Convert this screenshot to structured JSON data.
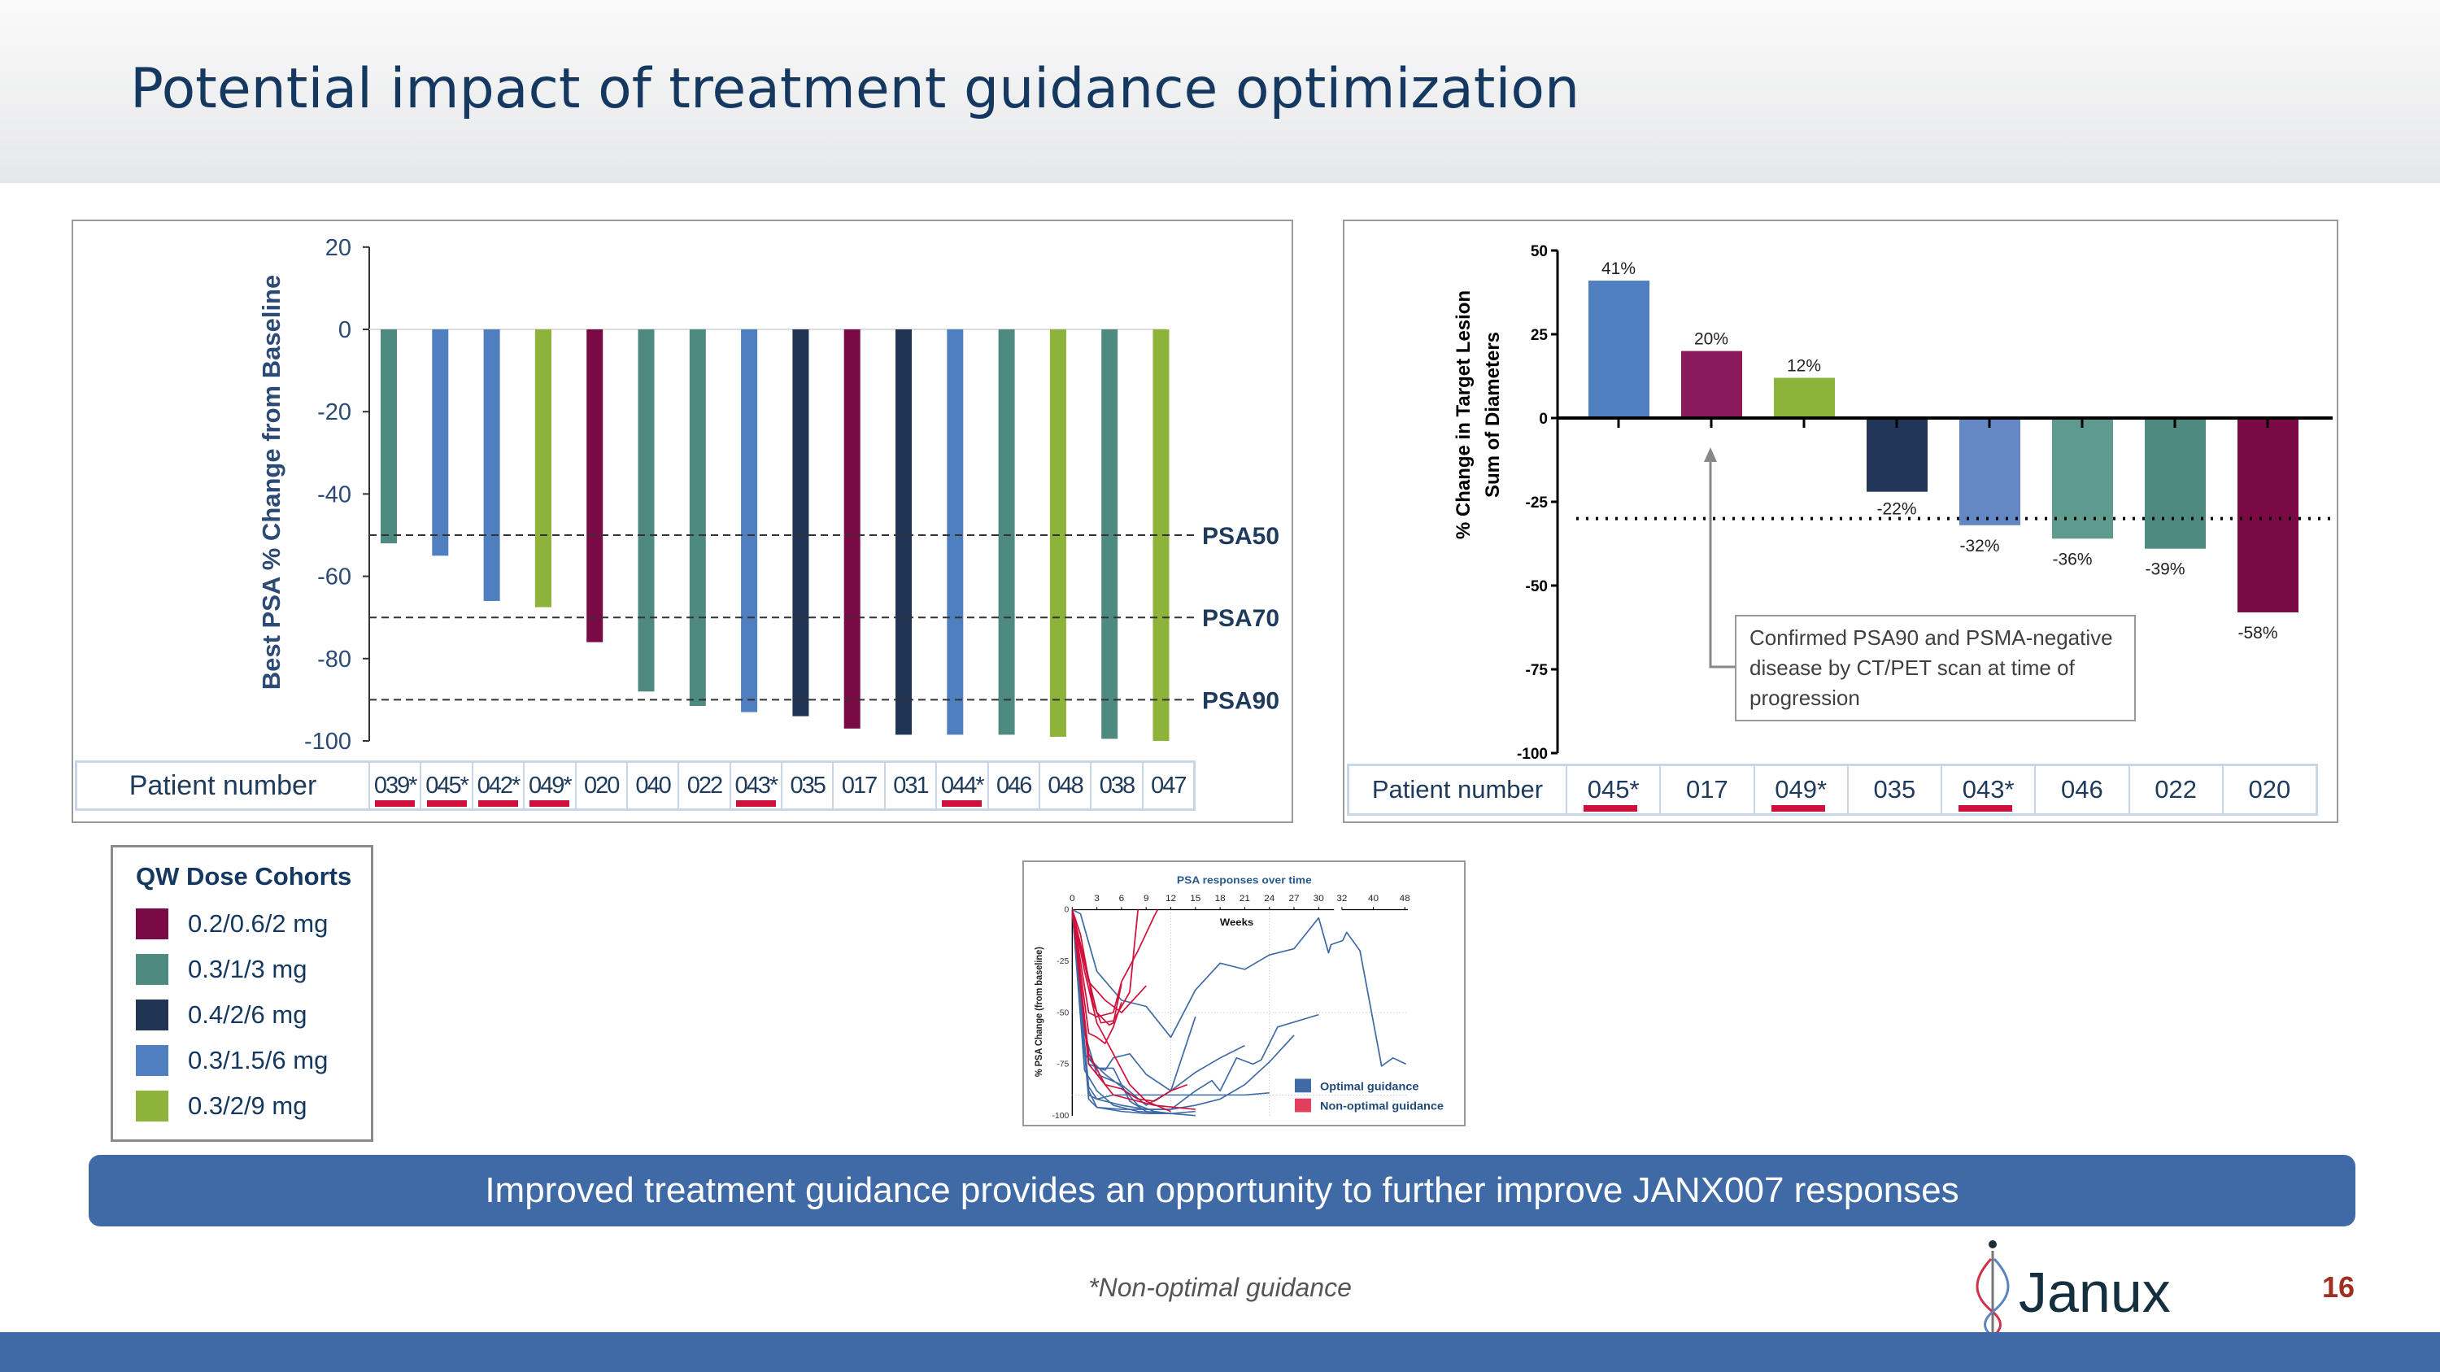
{
  "title": "Potential impact of treatment guidance optimization",
  "colors": {
    "maroon": "#7a0a45",
    "teal": "#4e8a80",
    "navy": "#1f3553",
    "blue": "#4f7fbf",
    "green": "#8db33a",
    "red_underline": "#d0103a",
    "banner": "#3f6aa6"
  },
  "chart_data": [
    {
      "type": "bar",
      "ylabel": "Best PSA % Change from Baseline",
      "ylim": [
        -100,
        20
      ],
      "yticks": [
        "20",
        "0",
        "-20",
        "-40",
        "-60",
        "-80",
        "-100"
      ],
      "reference_lines": [
        {
          "label": "PSA50",
          "value": -50
        },
        {
          "label": "PSA70",
          "value": -70
        },
        {
          "label": "PSA90",
          "value": -90
        }
      ],
      "row_label": "Patient number",
      "categories": [
        "039*",
        "045*",
        "042*",
        "049*",
        "020",
        "040",
        "022",
        "043*",
        "035",
        "017",
        "031",
        "044*",
        "046",
        "048",
        "038",
        "047"
      ],
      "values": [
        -52,
        -55,
        -66,
        -67.5,
        -76,
        -88,
        -91.5,
        -93,
        -94,
        -97,
        -98.5,
        -98.5,
        -98.5,
        -99,
        -99.5,
        -100
      ],
      "cohort": [
        "teal",
        "blue",
        "blue",
        "green",
        "maroon",
        "teal",
        "teal",
        "blue",
        "navy",
        "maroon",
        "navy",
        "blue",
        "teal",
        "green",
        "teal",
        "green"
      ],
      "underlined": [
        true,
        true,
        true,
        true,
        false,
        false,
        false,
        true,
        false,
        false,
        false,
        true,
        false,
        false,
        false,
        false
      ]
    },
    {
      "type": "bar",
      "ylabel_lines": [
        "% Change in  Target Lesion",
        "Sum of  Diameters"
      ],
      "ylim": [
        -100,
        50
      ],
      "yticks": [
        "50",
        "25",
        "0",
        "-25",
        "-50",
        "-75",
        "-100"
      ],
      "reference_line": -30,
      "row_label": "Patient number",
      "categories": [
        "045*",
        "017",
        "049*",
        "035",
        "043*",
        "046",
        "022",
        "020"
      ],
      "values": [
        41,
        20,
        12,
        -22,
        -32,
        -36,
        -39,
        -58
      ],
      "data_labels": [
        "41%",
        "20%",
        "12%",
        "-22%",
        "-32%",
        "-36%",
        "-39%",
        "-58%"
      ],
      "bar_colors": [
        "#4f7fbf",
        "#8b1a5a",
        "#8db33a",
        "#22365a",
        "#6388c4",
        "#5f9a8e",
        "#4e8a80",
        "#7a0a45"
      ],
      "underlined": [
        true,
        false,
        true,
        false,
        true,
        false,
        false,
        false
      ],
      "annotation": "Confirmed PSA90 and PSMA-negative disease by CT/PET scan at time of progression"
    },
    {
      "type": "line",
      "title": "PSA responses over time",
      "xlabel": "Weeks",
      "ylabel": "% PSA Change (from baseline)",
      "xticks": [
        "0",
        "3",
        "6",
        "9",
        "12",
        "15",
        "18",
        "21",
        "24",
        "27",
        "30",
        "32",
        "40",
        "48"
      ],
      "yticks": [
        "0",
        "-25",
        "-50",
        "-75",
        "-100"
      ],
      "ylim": [
        -100,
        0
      ],
      "legend": [
        {
          "name": "Optimal guidance",
          "color": "#3f6aa6"
        },
        {
          "name": "Non-optimal guidance",
          "color": "#e0405e"
        }
      ],
      "series_optimal": [
        [
          [
            0,
            0
          ],
          [
            1,
            -2
          ],
          [
            3,
            -30
          ],
          [
            6,
            -44
          ],
          [
            9,
            -47
          ],
          [
            12,
            -62
          ],
          [
            15,
            -39
          ],
          [
            18,
            -26
          ],
          [
            21,
            -29
          ],
          [
            24,
            -22
          ],
          [
            27,
            -19
          ],
          [
            30,
            -4
          ],
          [
            31.2,
            -21
          ],
          [
            31.5,
            -17
          ],
          [
            32.2,
            -15
          ],
          [
            33.2,
            -11
          ],
          [
            36.6,
            -20
          ],
          [
            42.1,
            -76
          ],
          [
            45,
            -72
          ],
          [
            48.3,
            -75
          ]
        ],
        [
          [
            0,
            0
          ],
          [
            1.5,
            -60
          ],
          [
            3,
            -80
          ],
          [
            6,
            -85
          ],
          [
            9,
            -95
          ],
          [
            12,
            -88
          ],
          [
            15,
            -52
          ]
        ],
        [
          [
            0,
            0
          ],
          [
            2,
            -75
          ],
          [
            4,
            -78
          ],
          [
            5,
            -72
          ],
          [
            7,
            -70
          ],
          [
            9,
            -80
          ],
          [
            12,
            -88
          ],
          [
            15,
            -79
          ],
          [
            18,
            -72
          ],
          [
            21,
            -66
          ]
        ],
        [
          [
            0,
            0
          ],
          [
            2,
            -86
          ],
          [
            3,
            -92
          ],
          [
            6,
            -95
          ],
          [
            9,
            -97
          ],
          [
            12,
            -97
          ],
          [
            15,
            -95
          ],
          [
            18,
            -92
          ],
          [
            21,
            -85
          ],
          [
            24,
            -74
          ],
          [
            27,
            -61
          ]
        ],
        [
          [
            0,
            0
          ],
          [
            2,
            -88
          ],
          [
            3,
            -96
          ],
          [
            6,
            -97
          ],
          [
            9,
            -97
          ],
          [
            12,
            -97
          ],
          [
            15,
            -88
          ],
          [
            17,
            -83
          ],
          [
            18,
            -88
          ],
          [
            20,
            -72
          ],
          [
            22,
            -75
          ],
          [
            23,
            -73
          ],
          [
            25,
            -57
          ],
          [
            30,
            -51
          ]
        ],
        [
          [
            0,
            0
          ],
          [
            2,
            -90
          ],
          [
            3,
            -92
          ],
          [
            5,
            -90
          ],
          [
            12,
            -90
          ],
          [
            15,
            -90
          ],
          [
            21,
            -90
          ],
          [
            24,
            -89
          ]
        ],
        [
          [
            0,
            0
          ],
          [
            1.5,
            -70
          ],
          [
            3,
            -77
          ],
          [
            5,
            -77
          ],
          [
            7,
            -93
          ],
          [
            9,
            -98
          ],
          [
            12,
            -99
          ],
          [
            15,
            -100
          ]
        ],
        [
          [
            0,
            0
          ],
          [
            2,
            -72
          ],
          [
            4,
            -80
          ],
          [
            6,
            -86
          ],
          [
            8,
            -95
          ],
          [
            10,
            -98
          ],
          [
            12,
            -99
          ]
        ],
        [
          [
            0,
            0
          ],
          [
            1.5,
            -78
          ],
          [
            3,
            -88
          ],
          [
            5,
            -95
          ],
          [
            8,
            -98
          ],
          [
            12,
            -99
          ]
        ],
        [
          [
            0,
            0
          ],
          [
            2,
            -92
          ],
          [
            3,
            -96
          ],
          [
            6,
            -98
          ],
          [
            9,
            -99
          ],
          [
            12,
            -99
          ],
          [
            15,
            -98
          ]
        ]
      ],
      "series_non_optimal": [
        [
          [
            0,
            0
          ],
          [
            1,
            -12
          ],
          [
            2.5,
            -45
          ],
          [
            3.5,
            -55
          ],
          [
            5,
            -54
          ],
          [
            7,
            -40
          ],
          [
            8,
            0
          ]
        ],
        [
          [
            0,
            0
          ],
          [
            2,
            -50
          ],
          [
            3,
            -52
          ],
          [
            4,
            -51
          ],
          [
            5,
            -50
          ],
          [
            6,
            -35
          ],
          [
            8,
            -20
          ],
          [
            10,
            -3
          ],
          [
            10.4,
            0
          ]
        ],
        [
          [
            0,
            0
          ],
          [
            1.5,
            -25
          ],
          [
            3,
            -50
          ],
          [
            4.5,
            -56
          ],
          [
            5,
            -55
          ],
          [
            6,
            -36
          ]
        ],
        [
          [
            0,
            0
          ],
          [
            2,
            -35
          ],
          [
            4,
            -44
          ],
          [
            6,
            -50
          ],
          [
            9,
            -37
          ]
        ],
        [
          [
            0,
            0
          ],
          [
            2,
            -60
          ],
          [
            3,
            -62
          ],
          [
            4,
            -65
          ],
          [
            5,
            -57
          ],
          [
            6,
            -45
          ]
        ],
        [
          [
            0,
            0
          ],
          [
            1.5,
            -30
          ],
          [
            3,
            -55
          ],
          [
            5,
            -70
          ],
          [
            7,
            -85
          ],
          [
            9,
            -93
          ],
          [
            12,
            -98
          ]
        ],
        [
          [
            0,
            0
          ],
          [
            2,
            -70
          ],
          [
            4,
            -85
          ],
          [
            6,
            -87
          ],
          [
            8,
            -92
          ],
          [
            10,
            -93
          ],
          [
            12,
            -88
          ],
          [
            14,
            -85
          ]
        ],
        [
          [
            0,
            0
          ],
          [
            2,
            -75
          ],
          [
            5,
            -90
          ],
          [
            10,
            -95
          ],
          [
            15,
            -97
          ]
        ]
      ]
    }
  ],
  "legend": {
    "title": "QW Dose Cohorts",
    "items": [
      {
        "label": "0.2/0.6/2 mg",
        "color": "#7a0a45"
      },
      {
        "label": "0.3/1/3 mg",
        "color": "#4e8a80"
      },
      {
        "label": "0.4/2/6 mg",
        "color": "#1f3553"
      },
      {
        "label": "0.3/1.5/6 mg",
        "color": "#4f7fbf"
      },
      {
        "label": "0.3/2/9 mg",
        "color": "#8db33a"
      }
    ]
  },
  "banner": "Improved treatment guidance provides an opportunity to further improve JANX007 responses",
  "footnote": "*Non-optimal guidance",
  "logo": "Janux",
  "page_number": "16"
}
